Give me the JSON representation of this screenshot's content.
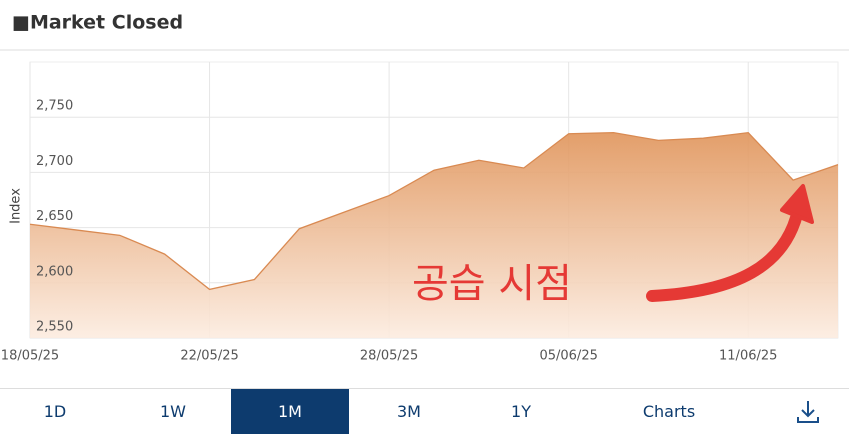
{
  "chart_data": {
    "type": "area",
    "title": "■Market Closed",
    "y_label": "Index",
    "categories": [
      "18/05/25",
      null,
      null,
      null,
      "22/05/25",
      null,
      null,
      null,
      "28/05/25",
      null,
      null,
      null,
      "05/06/25",
      null,
      null,
      null,
      "11/06/25",
      null,
      null
    ],
    "values": [
      2653,
      2648,
      2643,
      2626,
      2594,
      2603,
      2649,
      2664,
      2679,
      2702,
      2711,
      2704,
      2735,
      2736,
      2729,
      2731,
      2736,
      2693,
      2707
    ],
    "color": "#d98a52",
    "ylim": [
      2550,
      2800
    ],
    "yticks": [
      {
        "value": 2550,
        "label": "2,550"
      },
      {
        "value": 2600,
        "label": "2,600"
      },
      {
        "value": 2650,
        "label": "2,650"
      },
      {
        "value": 2700,
        "label": "2,700"
      },
      {
        "value": 2750,
        "label": "2,750"
      }
    ],
    "grid": true,
    "annotation": "공습  시점"
  },
  "tabs": [
    "1D",
    "1W",
    "1M",
    "3M",
    "1Y",
    "Charts"
  ],
  "selected_tab": 2
}
